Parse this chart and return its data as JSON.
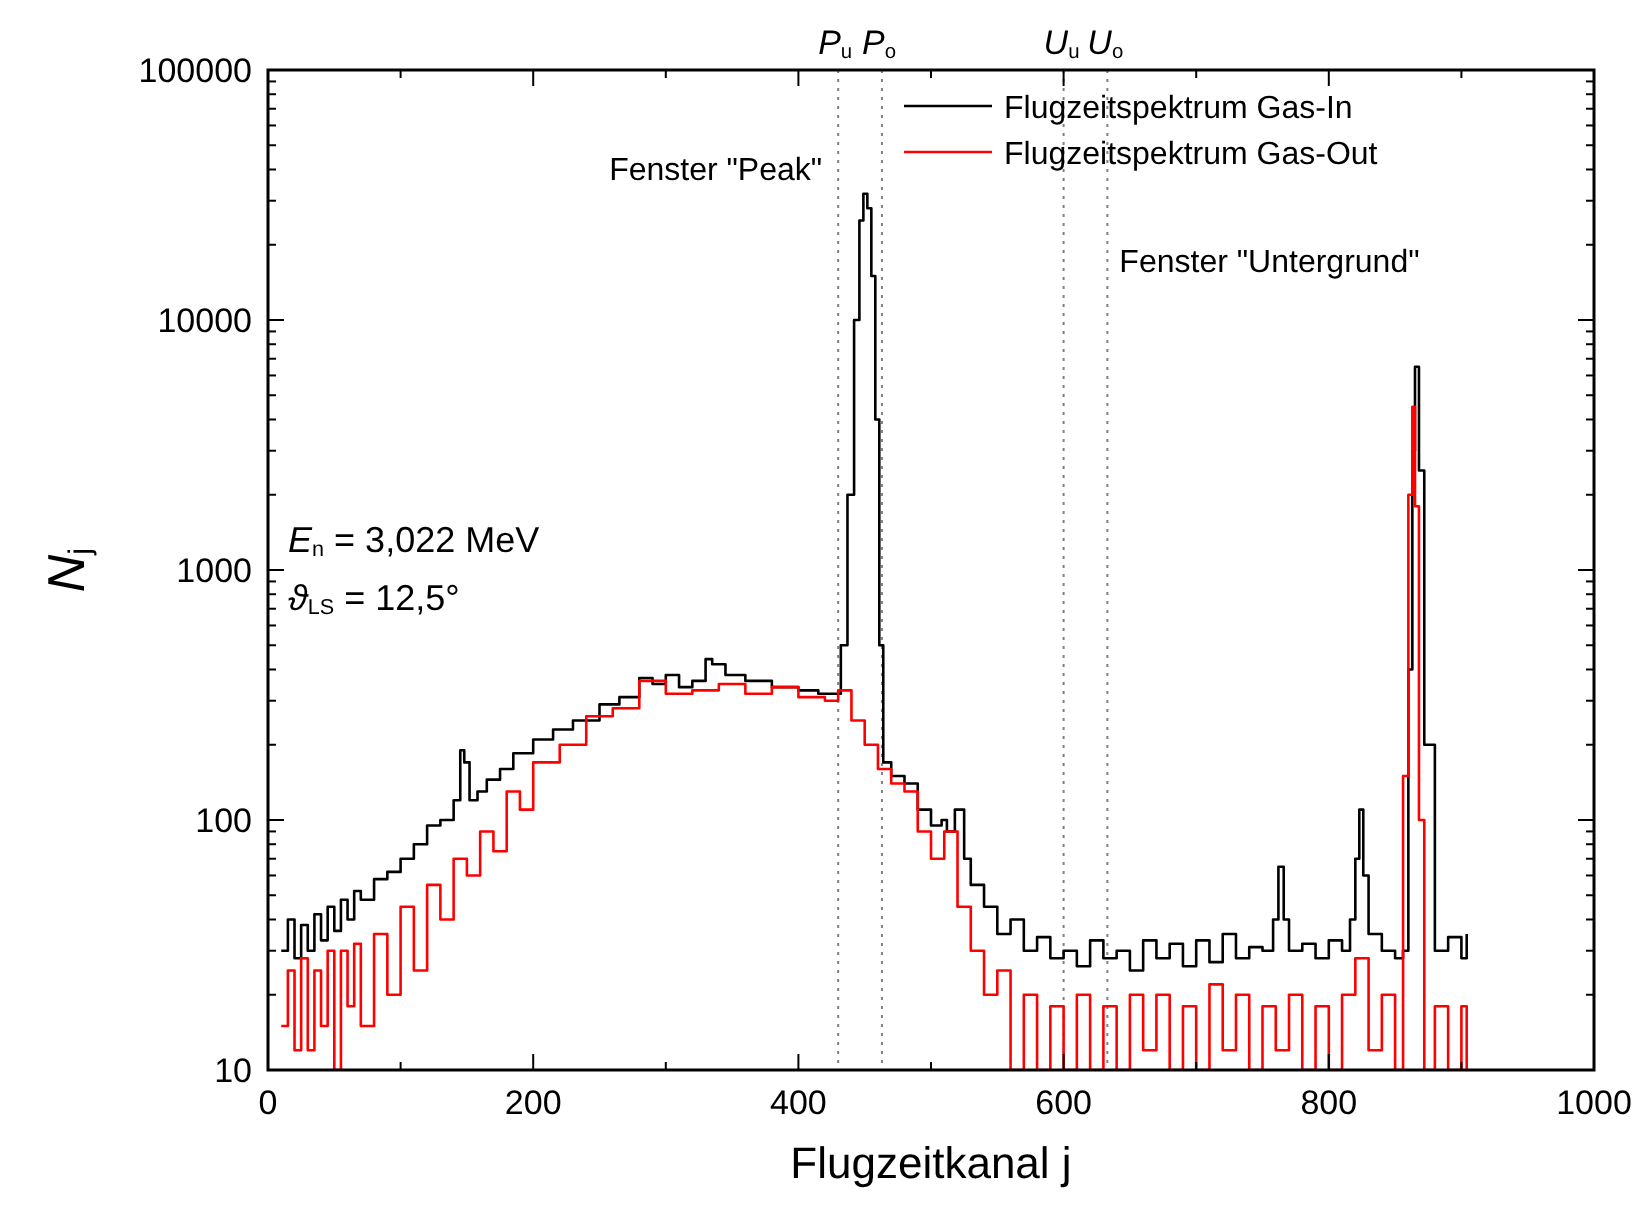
{
  "chart_data": {
    "type": "step",
    "xlabel": "Flugzeitkanal j",
    "ylabel": "N$_{j}$",
    "log": "y",
    "xlim": [
      0,
      1000
    ],
    "xticks": [
      0,
      200,
      400,
      600,
      800,
      1000
    ],
    "ylim": [
      10,
      100000
    ],
    "yticks": [
      10,
      100,
      1000,
      10000,
      100000
    ],
    "grid": false,
    "legend": "top right",
    "line_style": "solid",
    "series": [
      {
        "name": "Flugzeitspektrum Gas-In",
        "color": "#000000",
        "x": [
          10,
          15,
          20,
          25,
          30,
          35,
          40,
          45,
          50,
          55,
          60,
          65,
          70,
          80,
          90,
          100,
          110,
          120,
          130,
          140,
          145,
          148,
          152,
          158,
          165,
          175,
          185,
          200,
          215,
          230,
          250,
          265,
          280,
          290,
          300,
          310,
          320,
          330,
          335,
          345,
          360,
          380,
          400,
          415,
          428,
          432,
          437,
          442,
          446,
          449,
          452,
          455,
          458,
          461,
          464,
          470,
          480,
          490,
          500,
          508,
          512,
          518,
          525,
          530,
          540,
          550,
          560,
          570,
          580,
          590,
          600,
          610,
          620,
          630,
          640,
          650,
          660,
          670,
          680,
          690,
          700,
          710,
          720,
          730,
          740,
          750,
          758,
          762,
          766,
          770,
          780,
          790,
          800,
          810,
          816,
          820,
          823,
          826,
          830,
          840,
          850,
          856,
          860,
          863,
          865,
          868,
          872,
          880,
          890,
          900,
          904
        ],
        "values": [
          30,
          40,
          28,
          38,
          30,
          42,
          33,
          45,
          36,
          48,
          40,
          52,
          48,
          58,
          62,
          70,
          80,
          95,
          100,
          120,
          190,
          170,
          120,
          130,
          145,
          160,
          185,
          210,
          230,
          250,
          290,
          310,
          370,
          350,
          380,
          340,
          360,
          440,
          420,
          380,
          360,
          340,
          330,
          320,
          320,
          500,
          2000,
          10000,
          25000,
          32000,
          28000,
          15000,
          4000,
          500,
          170,
          150,
          140,
          110,
          95,
          100,
          90,
          110,
          70,
          55,
          45,
          35,
          40,
          30,
          34,
          28,
          30,
          26,
          33,
          28,
          30,
          25,
          33,
          28,
          32,
          26,
          33,
          27,
          35,
          28,
          31,
          30,
          40,
          65,
          40,
          30,
          32,
          28,
          33,
          30,
          40,
          70,
          110,
          60,
          35,
          30,
          28,
          30,
          400,
          3000,
          6500,
          2500,
          200,
          30,
          34,
          28,
          35
        ]
      },
      {
        "name": "Flugzeitspektrum Gas-Out",
        "color": "#ff0000",
        "x": [
          10,
          15,
          20,
          25,
          30,
          35,
          40,
          45,
          50,
          55,
          60,
          65,
          70,
          80,
          90,
          100,
          110,
          120,
          130,
          140,
          150,
          160,
          170,
          180,
          190,
          200,
          220,
          240,
          260,
          280,
          300,
          320,
          340,
          360,
          380,
          400,
          420,
          430,
          440,
          450,
          460,
          470,
          480,
          490,
          500,
          510,
          520,
          530,
          540,
          550,
          560,
          570,
          580,
          590,
          600,
          610,
          620,
          630,
          640,
          650,
          660,
          670,
          680,
          690,
          700,
          710,
          720,
          730,
          740,
          750,
          760,
          770,
          780,
          790,
          800,
          810,
          820,
          830,
          840,
          850,
          856,
          860,
          863,
          865,
          868,
          872,
          880,
          890,
          900,
          904
        ],
        "values": [
          15,
          25,
          12,
          28,
          12,
          25,
          15,
          30,
          10,
          30,
          18,
          32,
          15,
          35,
          20,
          45,
          25,
          55,
          40,
          70,
          60,
          90,
          75,
          130,
          110,
          170,
          200,
          260,
          280,
          360,
          320,
          330,
          350,
          320,
          340,
          310,
          300,
          330,
          250,
          200,
          160,
          140,
          130,
          90,
          70,
          90,
          45,
          30,
          20,
          25,
          10,
          20,
          10,
          18,
          10,
          20,
          10,
          18,
          10,
          20,
          12,
          20,
          10,
          18,
          10,
          22,
          12,
          20,
          10,
          18,
          12,
          20,
          10,
          18,
          10,
          20,
          28,
          12,
          20,
          10,
          150,
          2000,
          4500,
          1800,
          100,
          10,
          18,
          10,
          18,
          10
        ]
      }
    ],
    "ref_lines": [
      {
        "axis": "x",
        "value": 430,
        "label": "P$_{u}$",
        "line_style": "dotted",
        "color": "#808080"
      },
      {
        "axis": "x",
        "value": 463,
        "label": "P$_{o}$",
        "line_style": "dotted",
        "color": "#808080"
      },
      {
        "axis": "x",
        "value": 600,
        "label": "U$_{u}$",
        "line_style": "dotted",
        "color": "#808080"
      },
      {
        "axis": "x",
        "value": 633,
        "label": "U$_{o}$",
        "line_style": "dotted",
        "color": "#808080"
      }
    ],
    "annotations": [
      "Fenster \"Peak\"",
      "Fenster \"Untergrund\"",
      "E$_{n}$ = 3,022 MeV",
      "ϑ$_{LS}$ = 12,5°"
    ]
  }
}
